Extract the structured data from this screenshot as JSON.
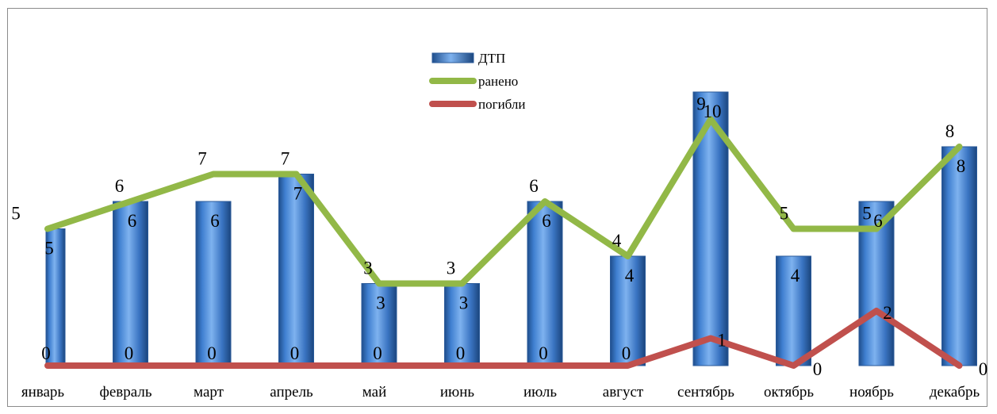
{
  "chart_data": {
    "type": "bar",
    "categories": [
      "январь",
      "февраль",
      "март",
      "апрель",
      "май",
      "июнь",
      "июль",
      "август",
      "сентябрь",
      "октябрь",
      "ноябрь",
      "декабрь"
    ],
    "series": [
      {
        "name": "ДТП",
        "type": "bar",
        "color": "#3a78c8",
        "values": [
          5,
          6,
          6,
          7,
          3,
          3,
          6,
          4,
          10,
          4,
          6,
          8
        ]
      },
      {
        "name": "ранено",
        "type": "line",
        "color": "#92b847",
        "values": [
          5,
          6,
          7,
          7,
          3,
          3,
          6,
          4,
          9,
          5,
          5,
          8
        ]
      },
      {
        "name": "погибли",
        "type": "line",
        "color": "#c0504d",
        "values": [
          0,
          0,
          0,
          0,
          0,
          0,
          0,
          0,
          1,
          0,
          2,
          0
        ]
      }
    ],
    "ylim": [
      0,
      10
    ],
    "grid": false,
    "legend_position": "top-center"
  }
}
